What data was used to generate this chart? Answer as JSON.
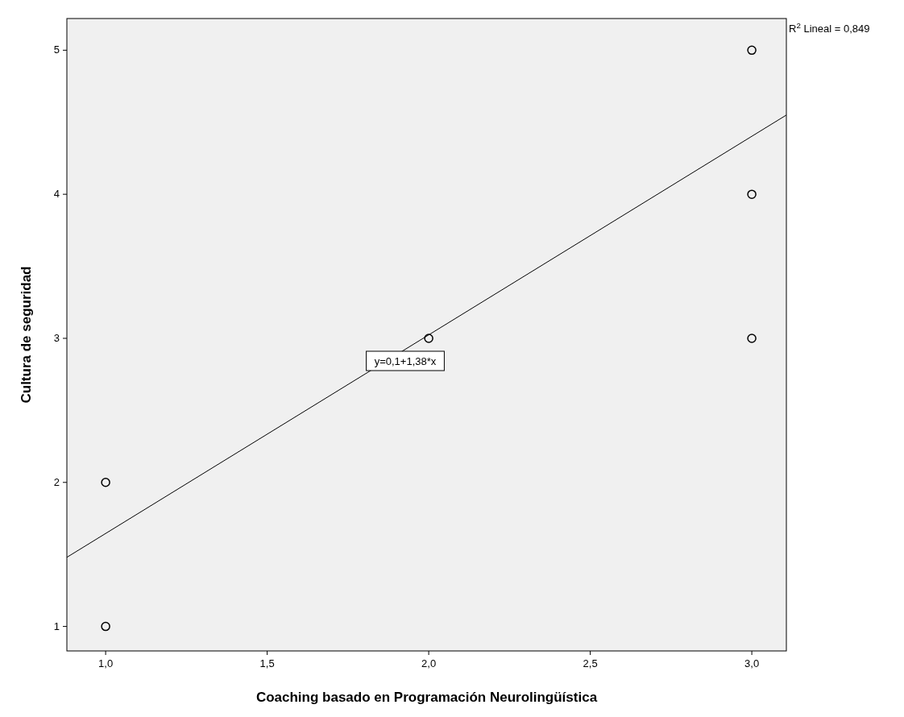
{
  "chart_data": {
    "type": "scatter",
    "xlabel": "Coaching basado en Programación Neurolingüística",
    "ylabel": "Cultura de seguridad",
    "xlim": [
      0.88,
      3.107
    ],
    "ylim": [
      0.83,
      5.22
    ],
    "xticks": [
      {
        "value": 1,
        "label": "1,0"
      },
      {
        "value": 1.5,
        "label": "1,5"
      },
      {
        "value": 2,
        "label": "2,0"
      },
      {
        "value": 2.5,
        "label": "2,5"
      },
      {
        "value": 3,
        "label": "3,0"
      }
    ],
    "yticks": [
      1,
      2,
      3,
      4,
      5
    ],
    "grid": false,
    "series": [
      {
        "marker": "circle",
        "color": "#000000",
        "x": [
          1,
          1,
          2,
          3,
          3,
          3
        ],
        "values": [
          1,
          2,
          3,
          3,
          4,
          5
        ]
      },
      {
        "type": "line",
        "marker": "none",
        "color": "#000000",
        "x": [
          0.88,
          3.107
        ],
        "values": [
          1.48,
          4.55
        ]
      }
    ],
    "annotations": [
      "y=0,1+1,38*x",
      "R$^{2}$ Lineal = 0,849"
    ]
  }
}
